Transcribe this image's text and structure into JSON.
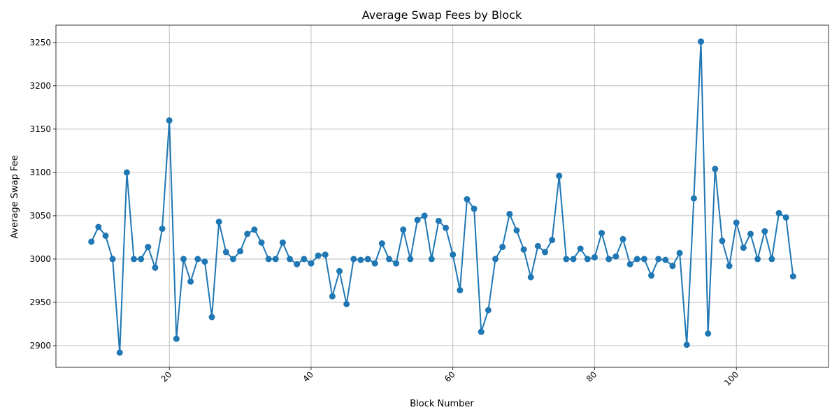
{
  "chart_data": {
    "type": "line",
    "title": "Average Swap Fees by Block",
    "xlabel": "Block Number",
    "ylabel": "Average Swap Fee",
    "xlim": [
      4,
      113
    ],
    "ylim": [
      2875,
      3270
    ],
    "x_ticks": [
      20,
      40,
      60,
      80,
      100
    ],
    "y_ticks": [
      2900,
      2950,
      3000,
      3050,
      3100,
      3150,
      3200,
      3250
    ],
    "x_tick_rotation": 45,
    "grid": true,
    "legend": "none",
    "series": [
      {
        "color": "#1f77b4",
        "marker": "circle",
        "x": [
          9,
          10,
          11,
          12,
          13,
          14,
          15,
          16,
          17,
          18,
          19,
          20,
          21,
          22,
          23,
          24,
          25,
          26,
          27,
          28,
          29,
          30,
          31,
          32,
          33,
          34,
          35,
          36,
          37,
          38,
          39,
          40,
          41,
          42,
          43,
          44,
          45,
          46,
          47,
          48,
          49,
          50,
          51,
          52,
          53,
          54,
          55,
          56,
          57,
          58,
          59,
          60,
          61,
          62,
          63,
          64,
          65,
          66,
          67,
          68,
          69,
          70,
          71,
          72,
          73,
          74,
          75,
          76,
          77,
          78,
          79,
          80,
          81,
          82,
          83,
          84,
          85,
          86,
          87,
          88,
          89,
          90,
          91,
          92,
          93,
          94,
          95,
          96,
          97,
          98,
          99,
          100,
          101,
          102,
          103,
          104,
          105,
          106,
          107,
          108
        ],
        "values": [
          3020,
          3037,
          3027,
          3000,
          2892,
          3100,
          3000,
          3000,
          3014,
          2990,
          3035,
          3160,
          2908,
          3000,
          2974,
          3000,
          2997,
          2933,
          3043,
          3008,
          3000,
          3009,
          3029,
          3034,
          3019,
          3000,
          3000,
          3019,
          3000,
          2994,
          3000,
          2995,
          3004,
          3005,
          2957,
          2986,
          2948,
          3000,
          2999,
          3000,
          2995,
          3018,
          3000,
          2995,
          3034,
          3000,
          3045,
          3050,
          3000,
          3044,
          3036,
          3005,
          2964,
          3069,
          3058,
          2916,
          2941,
          3000,
          3014,
          3052,
          3033,
          3011,
          2979,
          3015,
          3008,
          3022,
          3096,
          3000,
          3000,
          3012,
          3000,
          3002,
          3030,
          3000,
          3003,
          3023,
          2994,
          3000,
          3000,
          2981,
          3000,
          2999,
          2992,
          3007,
          2901,
          3070,
          3251,
          2914,
          3104,
          3021,
          2992,
          3042,
          3013,
          3029,
          3000,
          3032,
          3000,
          3053,
          3048,
          2980
        ]
      }
    ]
  }
}
